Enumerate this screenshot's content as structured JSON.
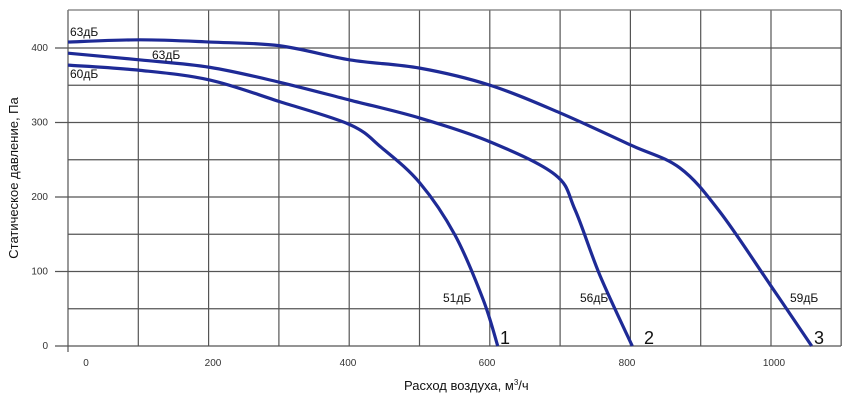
{
  "chart_data": {
    "type": "line",
    "title": "",
    "xlabel": "Расход воздуха, м³/ч",
    "xlabel_main": "Расход воздуха, м",
    "xlabel_sup": "3",
    "xlabel_tail": "/ч",
    "ylabel": "Статическое давление, Па",
    "xlim": [
      0,
      1080
    ],
    "ylim": [
      0,
      450
    ],
    "x_ticks": [
      "0",
      "200",
      "400",
      "600",
      "800",
      "1000"
    ],
    "y_ticks": [
      "0",
      "100",
      "200",
      "300",
      "400"
    ],
    "grid": true,
    "line_color": "#1e2a96",
    "series": [
      {
        "name": "1",
        "start_label": "60дБ",
        "end_label": "51дБ",
        "x": [
          0,
          99,
          200,
          301,
          403,
          449,
          504,
          555,
          596,
          617
        ],
        "y": [
          377,
          370,
          357,
          328,
          297,
          266,
          219,
          149,
          62,
          0
        ]
      },
      {
        "name": "2",
        "start_label": "63дБ",
        "end_label": "56дБ",
        "x": [
          0,
          99,
          200,
          301,
          403,
          504,
          606,
          700,
          729,
          765,
          812
        ],
        "y": [
          393,
          384,
          374,
          354,
          330,
          306,
          274,
          230,
          183,
          95,
          0
        ]
      },
      {
        "name": "3",
        "start_label": "63дБ",
        "end_label": "59дБ",
        "x": [
          0,
          99,
          200,
          301,
          403,
          504,
          606,
          707,
          809,
          881,
          939,
          1012,
          1072
        ],
        "y": [
          408,
          411,
          408,
          403,
          384,
          373,
          350,
          313,
          270,
          239,
          180,
          82,
          0
        ]
      }
    ]
  }
}
